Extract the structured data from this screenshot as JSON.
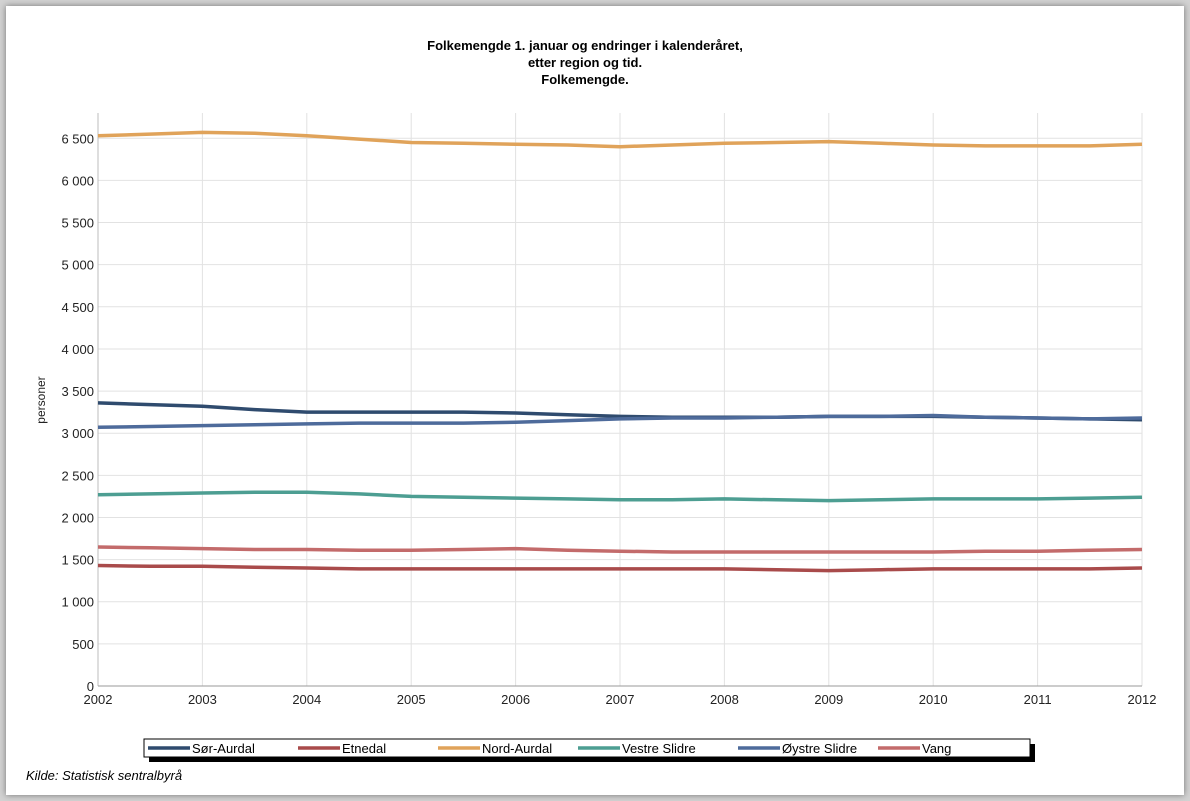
{
  "source": "Kilde: Statistisk sentralbyrå",
  "chart_data": {
    "type": "line",
    "title": [
      "Folkemengde 1. januar og endringer i kalenderåret,",
      "etter region og tid.",
      "Folkemengde."
    ],
    "xlabel": "",
    "ylabel": "personer",
    "xlim": [
      2002,
      2012
    ],
    "ylim": [
      0,
      6800
    ],
    "x_ticks": [
      "2002",
      "2003",
      "2004",
      "2005",
      "2006",
      "2007",
      "2008",
      "2009",
      "2010",
      "2011",
      "2012"
    ],
    "y_ticks": [
      {
        "value": 0,
        "label": "0"
      },
      {
        "value": 500,
        "label": "500"
      },
      {
        "value": 1000,
        "label": "1 000"
      },
      {
        "value": 1500,
        "label": "1 500"
      },
      {
        "value": 2000,
        "label": "2 000"
      },
      {
        "value": 2500,
        "label": "2 500"
      },
      {
        "value": 3000,
        "label": "3 000"
      },
      {
        "value": 3500,
        "label": "3 500"
      },
      {
        "value": 4000,
        "label": "4 000"
      },
      {
        "value": 4500,
        "label": "4 500"
      },
      {
        "value": 5000,
        "label": "5 000"
      },
      {
        "value": 5500,
        "label": "5 500"
      },
      {
        "value": 6000,
        "label": "6 000"
      },
      {
        "value": 6500,
        "label": "6 500"
      }
    ],
    "grid": true,
    "legend_position": "bottom",
    "x": [
      2002,
      2002.5,
      2003,
      2003.5,
      2004,
      2004.5,
      2005,
      2005.5,
      2006,
      2006.5,
      2007,
      2007.5,
      2008,
      2008.5,
      2009,
      2009.5,
      2010,
      2010.5,
      2011,
      2011.5,
      2012
    ],
    "series": [
      {
        "name": "Sør-Aurdal",
        "color": "#2f4b6e",
        "values": [
          3360,
          3340,
          3320,
          3280,
          3250,
          3250,
          3250,
          3250,
          3240,
          3220,
          3200,
          3190,
          3190,
          3190,
          3200,
          3200,
          3200,
          3190,
          3180,
          3170,
          3160
        ]
      },
      {
        "name": "Etnedal",
        "color": "#a94b4b",
        "values": [
          1430,
          1420,
          1420,
          1410,
          1400,
          1390,
          1390,
          1390,
          1390,
          1390,
          1390,
          1390,
          1390,
          1380,
          1370,
          1380,
          1390,
          1390,
          1390,
          1390,
          1400
        ]
      },
      {
        "name": "Nord-Aurdal",
        "color": "#e0a35a",
        "values": [
          6530,
          6550,
          6570,
          6560,
          6530,
          6490,
          6450,
          6440,
          6430,
          6420,
          6400,
          6420,
          6440,
          6450,
          6460,
          6440,
          6420,
          6410,
          6410,
          6410,
          6430
        ]
      },
      {
        "name": "Vestre Slidre",
        "color": "#4d9e92",
        "values": [
          2270,
          2280,
          2290,
          2300,
          2300,
          2280,
          2250,
          2240,
          2230,
          2220,
          2210,
          2210,
          2220,
          2210,
          2200,
          2210,
          2220,
          2220,
          2220,
          2230,
          2240
        ]
      },
      {
        "name": "Øystre Slidre",
        "color": "#4e6b9b",
        "values": [
          3070,
          3080,
          3090,
          3100,
          3110,
          3120,
          3120,
          3120,
          3130,
          3150,
          3170,
          3180,
          3180,
          3190,
          3200,
          3200,
          3210,
          3190,
          3180,
          3170,
          3180
        ]
      },
      {
        "name": "Vang",
        "color": "#c36b6b",
        "values": [
          1650,
          1640,
          1630,
          1620,
          1620,
          1610,
          1610,
          1620,
          1630,
          1610,
          1600,
          1590,
          1590,
          1590,
          1590,
          1590,
          1590,
          1600,
          1600,
          1610,
          1620
        ]
      }
    ]
  }
}
